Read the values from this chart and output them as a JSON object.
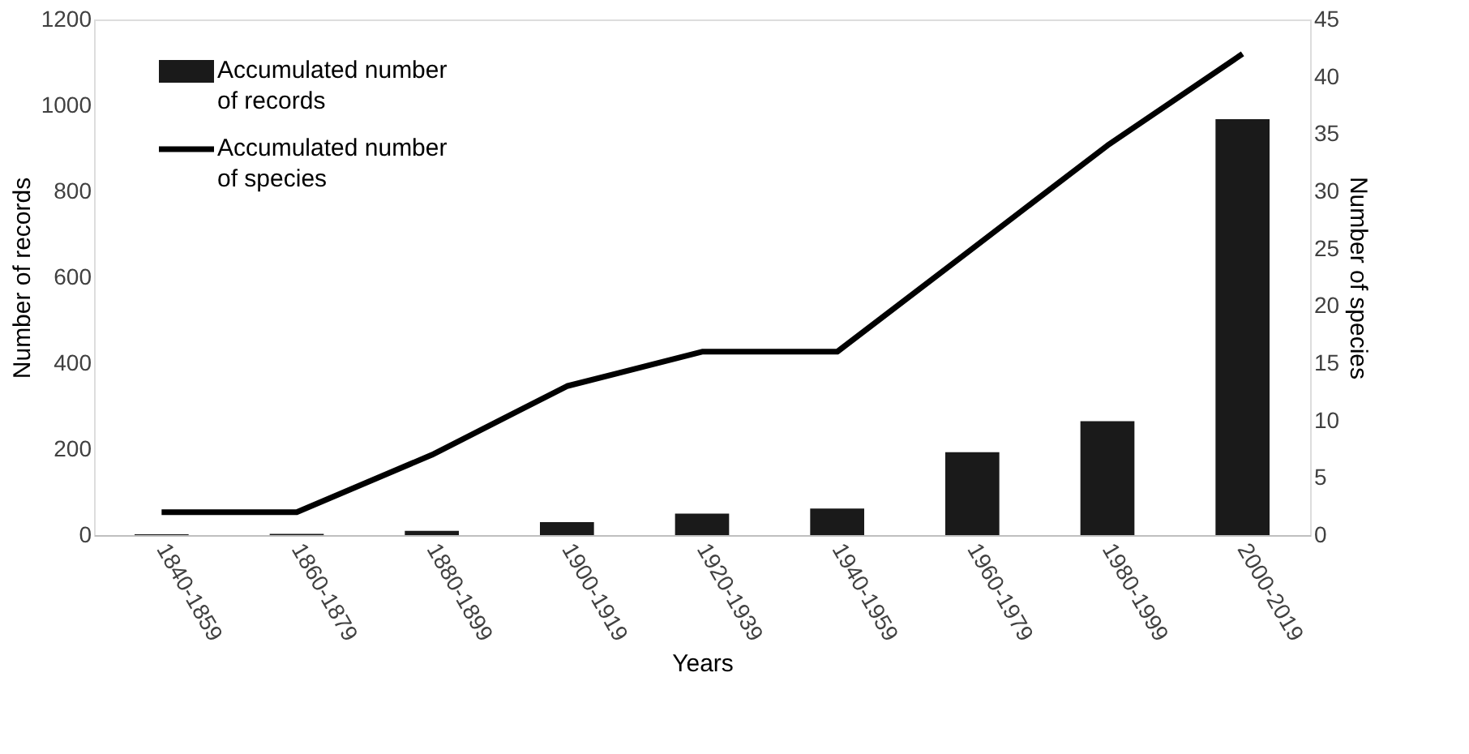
{
  "chart_data": {
    "type": "bar",
    "xlabel": "Years",
    "ylabel": "Number of records",
    "y2label": "Number of species",
    "categories": [
      "1840-1859",
      "1860-1879",
      "1880-1899",
      "1900-1919",
      "1920-1939",
      "1940-1959",
      "1960-1979",
      "1980-1999",
      "2000-2019"
    ],
    "series": [
      {
        "name": "Accumulated number of records",
        "color": "#1a1a1a",
        "values": [
          2,
          3,
          10,
          30,
          50,
          62,
          193,
          265,
          968
        ]
      },
      {
        "name": "Accumulated number of species",
        "type": "line",
        "axis": "y2",
        "color": "#000000",
        "values": [
          2,
          2,
          7,
          13,
          16,
          16,
          25,
          34,
          42
        ]
      }
    ],
    "ylim": [
      0,
      1200
    ],
    "yticks": [
      0,
      200,
      400,
      600,
      800,
      1000,
      1200
    ],
    "y2lim": [
      0,
      45
    ],
    "y2ticks": [
      0,
      5,
      10,
      15,
      20,
      25,
      30,
      35,
      40,
      45
    ],
    "grid": false,
    "legend": "top left",
    "marker": "none",
    "line_style": "solid"
  }
}
